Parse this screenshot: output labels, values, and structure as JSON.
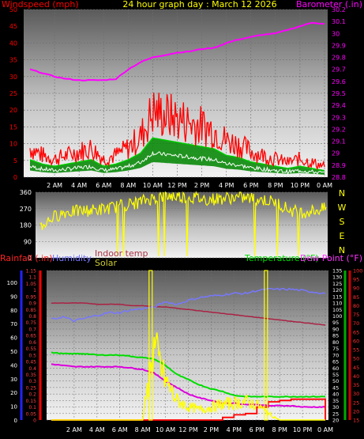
{
  "header": {
    "title": "24 hour graph day : March 12 2026",
    "windspeed_label": "Windspeed (mph)",
    "barometer_label": "Barometer (.in)"
  },
  "x_ticks": [
    "2 AM",
    "4 AM",
    "6 AM",
    "8 AM",
    "10 AM",
    "12 PM",
    "2 PM",
    "4 PM",
    "6 PM",
    "8 PM",
    "10 PM",
    "0 AM"
  ],
  "colors": {
    "wind": "#ff0000",
    "gust_band": "#00cc00",
    "wind_avg": "#ffffff",
    "barometer": "#ff00ff",
    "direction": "#ffff00",
    "rainfall": "#ff0000",
    "humidity": "#7777ff",
    "indoor_temp": "#aa2244",
    "solar": "#ffff00",
    "temperature": "#00dd00",
    "dew_point": "#dd00dd",
    "dewpoint_axis": "#ff3333",
    "left_axis_rain": "#2222ff"
  },
  "chart_data": [
    {
      "type": "line",
      "id": "wind_baro",
      "title": "24 hour graph day : March 12 2026",
      "ylabel_left": "Windspeed (mph)",
      "ylabel_right": "Barometer (.in)",
      "ylim_left": [
        0,
        50
      ],
      "yticks_left": [
        "0",
        "5",
        "10",
        "15",
        "20",
        "25",
        "30",
        "35",
        "40",
        "45",
        "50"
      ],
      "ylim_right": [
        28.8,
        30.2
      ],
      "yticks_right": [
        "28.8",
        "28.9",
        "29",
        "29.1",
        "29.2",
        "29.3",
        "29.4",
        "29.5",
        "29.6",
        "29.7",
        "29.8",
        "29.9",
        "30",
        "30.1",
        "30.2"
      ],
      "x_hours": [
        0,
        1,
        2,
        3,
        4,
        5,
        6,
        7,
        8,
        9,
        10,
        11,
        12,
        13,
        14,
        15,
        16,
        17,
        18,
        19,
        20,
        21,
        22,
        23,
        24
      ],
      "series": [
        {
          "name": "Windspeed (mph)",
          "values": [
            8,
            6,
            5,
            6,
            7,
            8,
            5,
            6,
            8,
            11,
            18,
            17,
            16,
            15,
            14,
            13,
            10,
            9,
            7,
            6,
            5,
            4,
            5,
            4,
            3
          ]
        },
        {
          "name": "Barometer (.in)",
          "values": [
            29.7,
            29.67,
            29.64,
            29.62,
            29.61,
            29.61,
            29.61,
            29.62,
            29.7,
            29.76,
            29.8,
            29.82,
            29.84,
            29.85,
            29.87,
            29.88,
            29.92,
            29.95,
            29.97,
            29.99,
            30.0,
            30.03,
            30.06,
            30.09,
            30.08
          ]
        }
      ]
    },
    {
      "type": "scatter",
      "id": "direction",
      "ylim": [
        0,
        360
      ],
      "yticks": [
        "0",
        "90",
        "180",
        "270",
        "360"
      ],
      "compass_labels": [
        "N",
        "W",
        "S",
        "E",
        "N"
      ],
      "x_hours": [
        0,
        1,
        2,
        3,
        4,
        5,
        6,
        7,
        8,
        9,
        10,
        11,
        12,
        13,
        14,
        15,
        16,
        17,
        18,
        19,
        20,
        21,
        22,
        23,
        24
      ],
      "series": [
        {
          "name": "Wind direction",
          "values": [
            170,
            220,
            250,
            255,
            260,
            265,
            275,
            290,
            300,
            320,
            335,
            340,
            335,
            330,
            320,
            325,
            330,
            330,
            325,
            315,
            300,
            260,
            250,
            260,
            270
          ]
        }
      ]
    },
    {
      "type": "line",
      "id": "temp_rain",
      "legend": [
        "Rainfall (.in)",
        "Humidity",
        "Indoor temp",
        "Solar",
        "Temperature (°F)",
        "Dew Point (°F)"
      ],
      "ylim_rain": [
        0,
        1.15
      ],
      "yticks_rain": [
        "0",
        "0.05",
        "0.1",
        "0.15",
        "0.2",
        "0.25",
        "0.3",
        "0.35",
        "0.4",
        "0.45",
        "0.5",
        "0.55",
        "0.6",
        "0.65",
        "0.7",
        "0.75",
        "0.8",
        "0.85",
        "0.9",
        "0.95",
        "1",
        "1.05",
        "1.1",
        "1.15"
      ],
      "yticks_humidity": [
        "0",
        "10",
        "20",
        "30",
        "40",
        "50",
        "60",
        "70",
        "80",
        "90",
        "100"
      ],
      "ylim_temp": [
        20,
        135
      ],
      "yticks_temp": [
        "20",
        "25",
        "30",
        "35",
        "40",
        "45",
        "50",
        "55",
        "60",
        "65",
        "70",
        "75",
        "80",
        "85",
        "90",
        "95",
        "100",
        "105",
        "110",
        "115",
        "120",
        "125",
        "130",
        "135"
      ],
      "yticks_dew": [
        "15",
        "20",
        "25",
        "30",
        "35",
        "40",
        "45",
        "50",
        "55",
        "60",
        "65",
        "70",
        "75",
        "80",
        "85",
        "90",
        "95",
        "100"
      ],
      "x_hours": [
        0,
        1,
        2,
        3,
        4,
        5,
        6,
        7,
        8,
        9,
        10,
        11,
        12,
        13,
        14,
        15,
        16,
        17,
        18,
        19,
        20,
        21,
        22,
        23,
        24
      ],
      "series": [
        {
          "name": "Temperature (°F)",
          "values": [
            72,
            71,
            71,
            71,
            70,
            70,
            70,
            69,
            68,
            67,
            62,
            55,
            51,
            47,
            44,
            42,
            39,
            38,
            38,
            38,
            38,
            38,
            38,
            38,
            38
          ]
        },
        {
          "name": "Dew Point (°F)",
          "values": [
            63,
            62,
            61,
            61,
            61,
            61,
            61,
            60,
            59,
            56,
            50,
            45,
            40,
            37,
            35,
            33,
            33,
            32,
            32,
            31,
            31,
            31,
            30,
            30,
            30
          ]
        },
        {
          "name": "Humidity",
          "values": [
            73,
            75,
            72,
            74,
            76,
            78,
            78,
            80,
            81,
            82,
            86,
            84,
            87,
            89,
            90,
            91,
            92,
            92,
            94,
            95,
            95,
            95,
            94,
            93,
            92
          ]
        },
        {
          "name": "Indoor temp",
          "values": [
            110,
            110,
            110,
            110,
            109,
            109,
            109,
            108,
            108,
            107,
            107,
            106,
            105,
            104,
            103,
            102,
            101,
            100,
            99,
            98,
            97,
            96,
            95,
            94,
            93
          ]
        },
        {
          "name": "Rainfall (.in)",
          "values": [
            0,
            0,
            0,
            0,
            0,
            0,
            0,
            0,
            0,
            0,
            0,
            0,
            0,
            0,
            0,
            0.02,
            0.04,
            0.05,
            0.1,
            0.14,
            0.15,
            0.16,
            0.16,
            0.16,
            0
          ]
        },
        {
          "name": "Solar",
          "values": [
            0,
            0,
            0,
            0,
            0,
            0,
            0,
            0,
            0,
            0.55,
            0.3,
            0.15,
            0.1,
            0.08,
            0.1,
            0.12,
            0.13,
            0.14,
            0.12,
            0.05,
            0,
            0,
            0,
            0,
            0
          ]
        }
      ]
    }
  ]
}
